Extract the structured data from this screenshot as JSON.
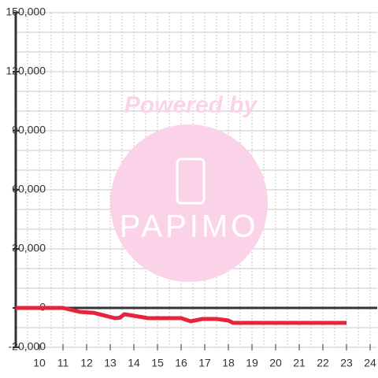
{
  "chart_data": {
    "type": "line",
    "watermark": {
      "line1": "Powered by",
      "line2": "PAPIMO"
    },
    "x": [
      9,
      10,
      11,
      11.7,
      12.3,
      13.2,
      13.4,
      13.6,
      14,
      14.6,
      16,
      16.4,
      16.9,
      17.5,
      18,
      18.2,
      23
    ],
    "series": [
      {
        "color": "#e8243c",
        "values": [
          0,
          0,
          0,
          -2000,
          -2500,
          -5200,
          -5000,
          -3200,
          -4000,
          -5200,
          -5200,
          -6800,
          -5600,
          -5600,
          -6400,
          -7600,
          -7600
        ]
      }
    ],
    "xlim": [
      9,
      24.3
    ],
    "xticks": [
      10,
      11,
      12,
      13,
      14,
      15,
      16,
      17,
      18,
      19,
      20,
      21,
      22,
      23,
      24
    ],
    "xgrid": [
      9.5,
      10,
      10.5,
      11,
      11.5,
      12,
      12.5,
      13,
      13.5,
      14,
      14.5,
      15,
      15.5,
      16,
      16.5,
      17,
      17.5,
      18,
      18.5,
      19,
      19.5,
      20,
      20.5,
      21,
      21.5,
      22,
      22.5,
      23,
      23.5,
      24
    ],
    "ylim": [
      -20000,
      150000
    ],
    "yticks": [
      {
        "value": 150000,
        "label": "150,000"
      },
      {
        "value": 120000,
        "label": "120,000"
      },
      {
        "value": 90000,
        "label": "90,000"
      },
      {
        "value": 60000,
        "label": "60,000"
      },
      {
        "value": 30000,
        "label": "30,000"
      },
      0,
      {
        "value": -20000,
        "label": "-20,000"
      }
    ],
    "ygrid": [
      -20000,
      -10000,
      0,
      10000,
      20000,
      30000,
      40000,
      50000,
      60000,
      70000,
      80000,
      90000,
      100000,
      110000,
      120000,
      130000,
      140000,
      150000
    ]
  }
}
